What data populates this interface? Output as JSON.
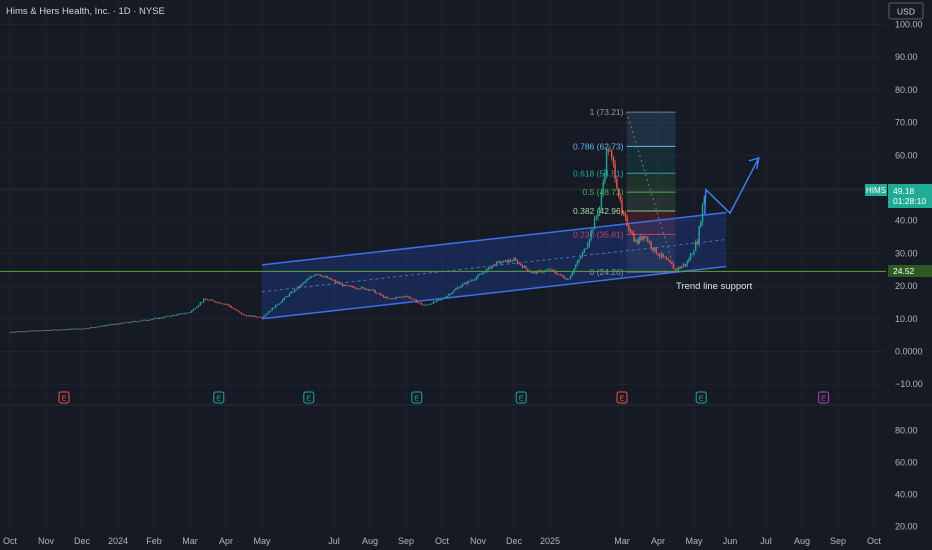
{
  "header": {
    "title": "Hims & Hers Health, Inc. · 1D · NYSE",
    "currency_button": "USD"
  },
  "ticker": {
    "symbol": "HIMS",
    "price": "49.18",
    "countdown": "01:28:10",
    "support_price": "24.52"
  },
  "annotation": "Trend line support",
  "colors": {
    "background": "#161a25",
    "up": "#26a69a",
    "down": "#ef5350",
    "channel": "#3f6fe8",
    "support": "#5aa33c",
    "arrow": "#3f7ef0"
  },
  "chart_data": {
    "type": "candlestick",
    "price_axis": {
      "ticks": [
        -10,
        0,
        10,
        20,
        30,
        40,
        50,
        60,
        70,
        80,
        90,
        100
      ],
      "labels": [
        "−10.00",
        "0.0000",
        "10.00",
        "20.00",
        "30.00",
        "40.00",
        "50.00",
        "60.00",
        "70.00",
        "80.00",
        "90.00",
        "100.00"
      ]
    },
    "lower_axis": {
      "ticks": [
        20,
        40,
        60,
        80
      ],
      "labels": [
        "20.00",
        "40.00",
        "60.00",
        "80.00"
      ]
    },
    "time_axis": {
      "labels": [
        "Oct",
        "Nov",
        "Dec",
        "2024",
        "Feb",
        "Mar",
        "Apr",
        "May",
        "Jul",
        "Aug",
        "Sep",
        "Oct",
        "Nov",
        "Dec",
        "2025",
        "Mar",
        "Apr",
        "May",
        "Jun",
        "Jul",
        "Aug",
        "Sep",
        "Oct"
      ],
      "months_from_start": [
        0,
        1,
        2,
        3,
        4,
        5,
        6,
        7,
        9,
        10,
        11,
        12,
        13,
        14,
        15,
        17,
        18,
        19,
        20,
        21,
        22,
        23,
        24
      ]
    },
    "price_path": {
      "months_from_start": [
        0,
        2,
        4,
        5,
        5.4,
        6,
        6.5,
        7,
        7.7,
        8.5,
        9.3,
        10,
        10.5,
        11,
        11.5,
        12,
        12.5,
        13,
        13.5,
        14,
        14.5,
        15,
        15.5,
        16,
        16.4,
        16.6,
        16.8,
        17,
        17.2,
        17.4,
        17.6,
        17.9,
        18.2,
        18.5,
        18.8,
        19.1,
        19.3
      ],
      "close": [
        6,
        7,
        10,
        12,
        16,
        14.5,
        11,
        10.5,
        17,
        24,
        20,
        19,
        16,
        17,
        14,
        16,
        20,
        23,
        27,
        28,
        24,
        25,
        22,
        32,
        45,
        63,
        55,
        42,
        38,
        33,
        36,
        31,
        28,
        25,
        27,
        34,
        49.18
      ]
    },
    "fibonacci": [
      {
        "ratio": "1",
        "value": 73.21,
        "label": "1 (73.21)"
      },
      {
        "ratio": "0.786",
        "value": 62.73,
        "label": "0.786 (62.73)"
      },
      {
        "ratio": "0.618",
        "value": 54.51,
        "label": "0.618 (54.51)"
      },
      {
        "ratio": "0.5",
        "value": 48.73,
        "label": "0.5 (48.73)"
      },
      {
        "ratio": "0.382",
        "value": 42.96,
        "label": "0.382 (42.96)"
      },
      {
        "ratio": "0.236",
        "value": 35.81,
        "label": "0.236 (35.81)"
      },
      {
        "ratio": "0",
        "value": 24.26,
        "label": "0 (24.26)"
      }
    ],
    "channel": {
      "start_month": 7,
      "end_month": 19.9,
      "upper": [
        26.5,
        42.5
      ],
      "lower": [
        10,
        26
      ]
    },
    "support_level": 24.52,
    "earnings_markers": [
      {
        "month": 1.5,
        "type": "E",
        "result": "miss"
      },
      {
        "month": 5.8,
        "type": "E",
        "result": "beat"
      },
      {
        "month": 8.3,
        "type": "E",
        "result": "beat"
      },
      {
        "month": 11.3,
        "type": "E",
        "result": "beat"
      },
      {
        "month": 14.2,
        "type": "E",
        "result": "beat"
      },
      {
        "month": 17.0,
        "type": "E",
        "result": "miss"
      },
      {
        "month": 19.2,
        "type": "E",
        "result": "beat"
      },
      {
        "month": 22.6,
        "type": "E",
        "result": "upcoming"
      }
    ]
  }
}
